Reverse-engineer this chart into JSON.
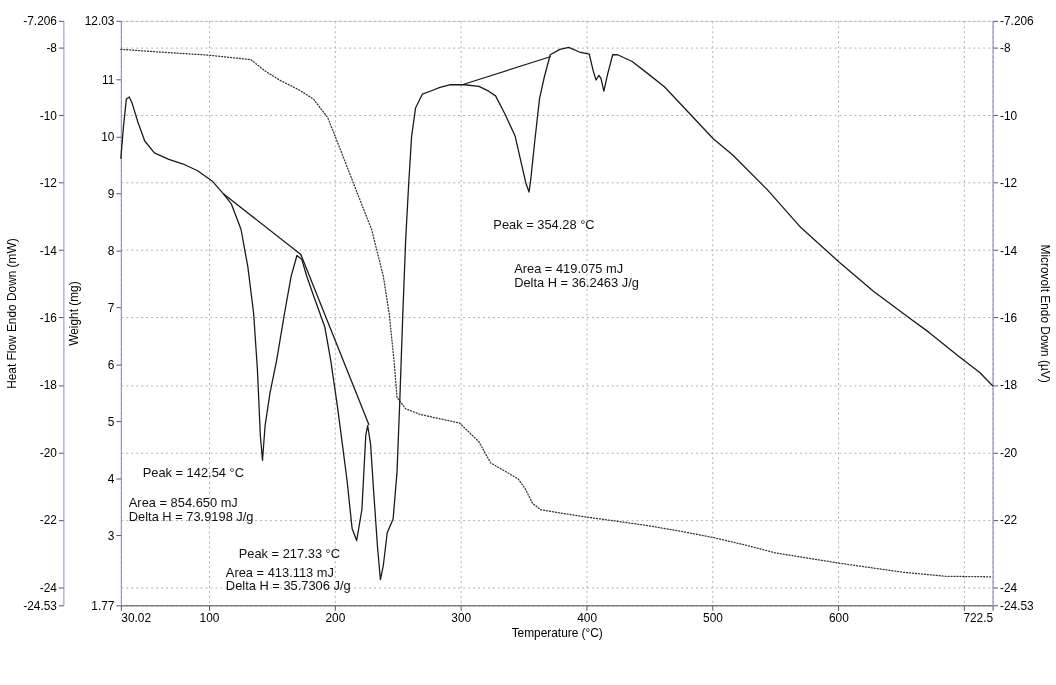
{
  "chart_data": {
    "type": "line",
    "xlabel": "Temperature (°C)",
    "ylabel": "Heat Flow Endo Down (mW)",
    "y2label": "Microvolt Endo Down (µV)",
    "y3label": "Weight (mg)",
    "xlim": [
      30.02,
      722.5
    ],
    "xticks": [
      30.02,
      100,
      200,
      300,
      400,
      500,
      600,
      {
        "value": 700,
        "label": null
      },
      722.5
    ],
    "ylim": [
      -24.53,
      -7.206
    ],
    "yticks": [
      -24.53,
      -24,
      -22,
      -20,
      -18,
      -16,
      -14,
      -12,
      -10,
      -8,
      -7.206
    ],
    "y2lim": [
      -24.53,
      -7.206
    ],
    "y2ticks": [
      -24.53,
      -24,
      -22,
      -20,
      -18,
      -16,
      -14,
      -12,
      -10,
      -8,
      -7.206
    ],
    "y3lim": [
      1.77,
      12.03
    ],
    "y3ticks": [
      1.77,
      3,
      4,
      5,
      6,
      7,
      8,
      9,
      10,
      11,
      12.03
    ],
    "grid": true,
    "series": [
      {
        "axis": "y2",
        "color": "#1a1a1a",
        "line_style": "solid",
        "x": [
          30.02,
          32.1,
          34.4,
          36.7,
          39.0,
          43.6,
          48.9,
          56.6,
          68.1,
          79.6,
          91.0,
          102.5,
          111.7,
          117.9,
          125.5,
          130.9,
          135.5,
          138.5,
          140.8,
          142.54,
          144.6,
          148.5,
          153.8,
          160.0,
          165.3,
          169.9,
          173.7,
          177.6,
          182.9,
          192.1,
          196.7,
          202.1,
          206.0,
          209.8,
          213.7,
          217.33,
          221.5,
          224.6,
          226.1,
          228.4,
          230.8,
          233.9,
          236.2,
          238.5,
          241.6,
          246.3,
          249.4,
          251.7,
          254.0,
          256.3,
          258.7,
          261.0,
          264.1,
          269.5,
          277.3,
          283.5,
          291.2,
          302.8,
          314.5,
          322.2,
          327.7,
          335.4,
          343.2,
          347.8,
          351.7,
          354.28,
          355.6,
          358.7,
          362.6,
          366.4,
          371.1,
          378.8,
          385.8,
          394.3,
          402.1,
          405.2,
          407.5,
          409.8,
          411.4,
          413.7,
          416.8,
          420.7,
          424.6,
          436.2,
          448.6,
          461.8,
          479.7,
          500.6,
          516.1,
          543.3,
          570.4,
          600.7,
          627.8,
          658.8,
          672.0,
          696.0,
          712.3,
          722.5
        ],
        "values": [
          -11.28,
          -10.34,
          -9.52,
          -9.46,
          -9.65,
          -10.21,
          -10.76,
          -11.12,
          -11.31,
          -11.45,
          -11.65,
          -11.95,
          -12.34,
          -12.64,
          -13.39,
          -14.5,
          -15.88,
          -17.54,
          -19.48,
          -20.23,
          -19.2,
          -18.23,
          -17.26,
          -15.88,
          -14.77,
          -14.16,
          -14.27,
          -14.77,
          -15.33,
          -16.29,
          -17.26,
          -18.65,
          -19.76,
          -20.86,
          -22.25,
          -22.61,
          -21.69,
          -19.48,
          -19.2,
          -19.76,
          -21.14,
          -22.8,
          -23.77,
          -23.35,
          -22.38,
          -21.97,
          -20.58,
          -18.37,
          -15.88,
          -13.67,
          -12.01,
          -10.62,
          -9.79,
          -9.38,
          -9.27,
          -9.18,
          -9.1,
          -9.1,
          -9.15,
          -9.29,
          -9.43,
          -9.99,
          -10.62,
          -11.37,
          -12.01,
          -12.28,
          -11.92,
          -10.81,
          -9.51,
          -8.87,
          -8.21,
          -8.05,
          -7.99,
          -8.13,
          -8.19,
          -8.68,
          -8.96,
          -8.82,
          -8.91,
          -9.29,
          -8.77,
          -8.21,
          -8.21,
          -8.41,
          -8.77,
          -9.16,
          -9.87,
          -10.7,
          -11.18,
          -12.2,
          -13.34,
          -14.36,
          -15.22,
          -16.08,
          -16.44,
          -17.16,
          -17.63,
          -18.02
        ]
      },
      {
        "axis": "y3",
        "color": "#333333",
        "line_style": "dotted",
        "x": [
          30.02,
          63.0,
          98.7,
          133.2,
          144.6,
          156.1,
          171.4,
          182.9,
          194.4,
          206.0,
          217.6,
          229.2,
          238.5,
          243.2,
          247.0,
          249.4,
          256.3,
          268.0,
          299.0,
          314.5,
          323.8,
          345.5,
          350.9,
          357.1,
          363.3,
          376.5,
          399.7,
          423.0,
          448.6,
          474.9,
          500.6,
          523.8,
          550.2,
          600.6,
          651.8,
          685.1,
          722.5
        ],
        "values": [
          11.53,
          11.48,
          11.43,
          11.35,
          11.15,
          10.99,
          10.82,
          10.66,
          10.33,
          9.68,
          9.02,
          8.37,
          7.55,
          6.89,
          6.07,
          5.42,
          5.22,
          5.12,
          4.97,
          4.64,
          4.27,
          3.99,
          3.83,
          3.56,
          3.45,
          3.4,
          3.32,
          3.25,
          3.17,
          3.07,
          2.96,
          2.84,
          2.69,
          2.51,
          2.35,
          2.28,
          2.27
        ]
      },
      {
        "axis": "y2",
        "color": "#1a1a1a",
        "line_style": "solid",
        "x": [
          111.7,
          173.0
        ],
        "values": [
          -12.34,
          -14.13
        ]
      },
      {
        "axis": "y2",
        "color": "#1a1a1a",
        "line_style": "solid",
        "x": [
          173.0,
          227.0
        ],
        "values": [
          -14.13,
          -19.17
        ]
      },
      {
        "axis": "y2",
        "color": "#1a1a1a",
        "line_style": "solid",
        "x": [
          301.2,
          371.1
        ],
        "values": [
          -9.1,
          -8.27
        ]
      }
    ],
    "annotations": [
      "Peak = 142.54 °C",
      "Area = 854.650 mJ",
      "Delta H = 73.9198 J/g",
      "Peak = 217.33 °C",
      "Area = 413.113 mJ",
      "Delta H = 35.7306 J/g",
      "Peak = 354.28 °C",
      "Area = 419.075 mJ",
      "Delta H = 36.2463 J/g"
    ]
  }
}
